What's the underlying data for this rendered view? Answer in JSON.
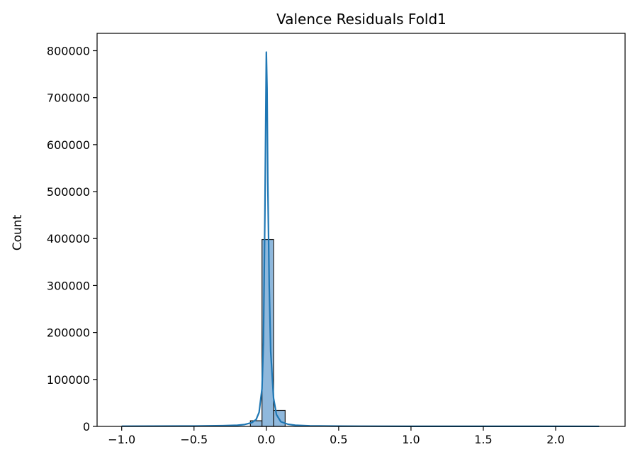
{
  "chart_data": {
    "type": "bar",
    "title": "Valence Residuals Fold1",
    "xlabel": "",
    "ylabel": "Count",
    "xlim": [
      -1.17,
      2.48
    ],
    "ylim": [
      0,
      837000
    ],
    "xticks": [
      -1.0,
      -0.5,
      0.0,
      0.5,
      1.0,
      1.5,
      2.0
    ],
    "xtick_labels": [
      "−1.0",
      "−0.5",
      "0.0",
      "0.5",
      "1.0",
      "1.5",
      "2.0"
    ],
    "yticks": [
      0,
      100000,
      200000,
      300000,
      400000,
      500000,
      600000,
      700000,
      800000
    ],
    "ytick_labels": [
      "0",
      "100000",
      "200000",
      "300000",
      "400000",
      "500000",
      "600000",
      "700000",
      "800000"
    ],
    "bins": [
      {
        "x0": -0.11,
        "x1": -0.03,
        "count": 12000
      },
      {
        "x0": -0.03,
        "x1": 0.05,
        "count": 398000
      },
      {
        "x0": 0.05,
        "x1": 0.13,
        "count": 34000
      }
    ],
    "kde": {
      "x": [
        -1.0,
        -0.5,
        -0.3,
        -0.2,
        -0.15,
        -0.1,
        -0.07,
        -0.05,
        -0.03,
        -0.02,
        -0.01,
        0.0,
        0.005,
        0.01,
        0.02,
        0.03,
        0.05,
        0.07,
        0.1,
        0.15,
        0.2,
        0.3,
        0.5,
        1.0,
        2.3
      ],
      "y": [
        500,
        800,
        1500,
        2500,
        4000,
        8000,
        15000,
        30000,
        80000,
        180000,
        450000,
        797000,
        720000,
        520000,
        300000,
        160000,
        60000,
        25000,
        10000,
        4500,
        2500,
        1200,
        600,
        200,
        100
      ]
    },
    "grid": false,
    "legend": "none",
    "colors": {
      "bar_fill": "#8fb8dc",
      "bar_edge": "#1a1a1a",
      "kde_line": "#1f77b4",
      "axes": "#000000"
    }
  }
}
